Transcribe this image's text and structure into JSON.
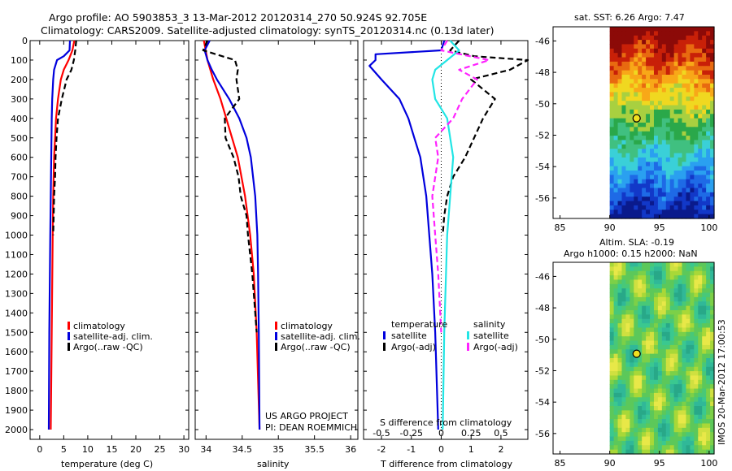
{
  "header": {
    "title_line1": "Argo profile: AO 5903853_3 13-Mar-2012 20120314_270 50.924S 92.705E",
    "title_line2": "Climatology: CARS2009. Satellite-adjusted climatology: synTS_20120314.nc (0.13d later)"
  },
  "colors": {
    "climatology": "#ff0000",
    "satellite": "#0000dd",
    "argo": "#000000",
    "satellite_salinity": "#22e5e5",
    "argo_adj_salinity": "#ff22ff"
  },
  "chart_data": [
    {
      "type": "line",
      "name": "temperature-profile",
      "xlabel": "temperature (deg C)",
      "ylabel": "",
      "xlim": [
        -2,
        31
      ],
      "ylim": [
        2050,
        0
      ],
      "xticks": [
        "0",
        "5",
        "10",
        "15",
        "20",
        "25",
        "30"
      ],
      "xtick_values": [
        0,
        5,
        10,
        15,
        20,
        25,
        30
      ],
      "yticks": [
        "0",
        "100",
        "200",
        "300",
        "400",
        "500",
        "600",
        "700",
        "800",
        "900",
        "1000",
        "1100",
        "1200",
        "1300",
        "1400",
        "1500",
        "1600",
        "1700",
        "1800",
        "1900",
        "2000"
      ],
      "ytick_values": [
        0,
        100,
        200,
        300,
        400,
        500,
        600,
        700,
        800,
        900,
        1000,
        1100,
        1200,
        1300,
        1400,
        1500,
        1600,
        1700,
        1800,
        1900,
        2000
      ],
      "legend": [
        "climatology",
        "satellite-adj. clim.",
        "Argo(..raw -QC)"
      ],
      "series": [
        {
          "name": "climatology",
          "style": "solid",
          "depth": [
            0,
            50,
            100,
            150,
            200,
            300,
            400,
            600,
            800,
            1000,
            1500,
            2000
          ],
          "values": [
            7.2,
            6.8,
            6.0,
            5.0,
            4.4,
            3.8,
            3.4,
            3.0,
            2.8,
            2.7,
            2.5,
            2.3
          ]
        },
        {
          "name": "satellite-adj. clim.",
          "style": "solid",
          "depth": [
            0,
            50,
            80,
            100,
            150,
            200,
            300,
            400,
            600,
            800,
            1000,
            1500,
            2000
          ],
          "values": [
            6.3,
            6.2,
            5.0,
            3.6,
            3.0,
            2.8,
            2.6,
            2.5,
            2.4,
            2.3,
            2.2,
            2.0,
            1.9
          ]
        },
        {
          "name": "Argo(..raw -QC)",
          "style": "dashed",
          "depth": [
            0,
            50,
            100,
            150,
            200,
            300,
            400,
            500,
            600,
            700,
            800,
            900,
            1000
          ],
          "values": [
            7.6,
            7.4,
            7.1,
            6.6,
            5.6,
            4.6,
            3.8,
            3.5,
            3.3,
            3.2,
            3.0,
            2.9,
            2.8
          ]
        }
      ]
    },
    {
      "type": "line",
      "name": "salinity-profile",
      "xlabel": "salinity",
      "xlim": [
        33.85,
        36.1
      ],
      "ylim": [
        2050,
        0
      ],
      "xticks": [
        "34",
        "34.5",
        "35",
        "35.5",
        "36"
      ],
      "xtick_values": [
        34,
        34.5,
        35,
        35.5,
        36
      ],
      "legend": [
        "climatology",
        "satellite-adj. clim.",
        "Argo(..raw -QC)"
      ],
      "annotations": [
        "US ARGO PROJECT",
        "PI: DEAN ROEMMICH"
      ],
      "series": [
        {
          "name": "climatology",
          "style": "solid",
          "depth": [
            0,
            100,
            200,
            300,
            400,
            500,
            600,
            800,
            1000,
            1200,
            1500,
            2000
          ],
          "values": [
            33.97,
            34.02,
            34.1,
            34.2,
            34.28,
            34.36,
            34.44,
            34.54,
            34.61,
            34.66,
            34.7,
            34.74
          ]
        },
        {
          "name": "satellite-adj. clim.",
          "style": "solid",
          "depth": [
            0,
            50,
            100,
            150,
            200,
            300,
            400,
            500,
            600,
            800,
            1000,
            1200,
            1500,
            2000
          ],
          "values": [
            34.05,
            33.98,
            34.02,
            34.08,
            34.15,
            34.32,
            34.46,
            34.56,
            34.62,
            34.68,
            34.71,
            34.72,
            34.73,
            34.74
          ]
        },
        {
          "name": "Argo(..raw -QC)",
          "style": "dashed",
          "depth": [
            0,
            50,
            100,
            150,
            200,
            300,
            400,
            500,
            600,
            700,
            800,
            900,
            1000,
            1200,
            1500
          ],
          "values": [
            34.02,
            33.96,
            34.4,
            34.44,
            34.42,
            34.46,
            34.26,
            34.27,
            34.38,
            34.45,
            34.48,
            34.56,
            34.58,
            34.64,
            34.7
          ]
        }
      ]
    },
    {
      "type": "line",
      "name": "difference-profile",
      "xlabel": "T difference from climatology",
      "top_axis_label": "S difference from climatology",
      "xlim": [
        -2.6,
        2.9
      ],
      "ylim": [
        2050,
        0
      ],
      "xticks": [
        "-2",
        "-1",
        "0",
        "1",
        "2"
      ],
      "xtick_values": [
        -2,
        -1,
        0,
        1,
        2
      ],
      "top_xticks": [
        "-0.5",
        "-0.25",
        "0",
        "0.25",
        "0.5"
      ],
      "top_xtick_values": [
        -2,
        -1,
        0,
        1,
        2
      ],
      "legend_headers": [
        "temperature",
        "salinity"
      ],
      "legend": [
        "satellite",
        "Argo(-adj)",
        "satellite",
        "Argo(-adj)"
      ],
      "series": [
        {
          "name": "temperature satellite",
          "style": "solid",
          "depth": [
            0,
            50,
            70,
            100,
            130,
            200,
            300,
            400,
            500,
            600,
            800,
            1000,
            1200,
            1500,
            2000
          ],
          "values": [
            0.1,
            0.0,
            -2.2,
            -2.2,
            -2.4,
            -2.0,
            -1.4,
            -1.1,
            -0.9,
            -0.7,
            -0.5,
            -0.4,
            -0.3,
            -0.2,
            -0.1
          ]
        },
        {
          "name": "temperature Argo(-adj)",
          "style": "dashed",
          "depth": [
            0,
            50,
            80,
            100,
            150,
            200,
            300,
            400,
            500,
            600,
            700,
            800,
            900,
            1000
          ],
          "values": [
            0.6,
            0.3,
            1.1,
            2.9,
            2.3,
            1.0,
            1.8,
            1.4,
            1.1,
            0.8,
            0.4,
            0.2,
            0.1,
            0.05
          ]
        },
        {
          "name": "salinity satellite",
          "style": "solid",
          "depth": [
            0,
            50,
            100,
            150,
            200,
            300,
            400,
            600,
            800,
            1000,
            1500,
            2000
          ],
          "values": [
            0.3,
            0.6,
            0.2,
            -0.2,
            -0.3,
            -0.2,
            0.2,
            0.4,
            0.3,
            0.2,
            0.1,
            0.05
          ]
        },
        {
          "name": "salinity Argo(-adj)",
          "style": "dashed",
          "depth": [
            0,
            50,
            100,
            150,
            200,
            300,
            400,
            500,
            600,
            800,
            1000,
            1200,
            1500
          ],
          "values": [
            0.2,
            0.0,
            1.6,
            0.6,
            1.2,
            0.7,
            0.4,
            -0.2,
            -0.1,
            -0.3,
            -0.2,
            -0.1,
            0.0
          ]
        }
      ]
    },
    {
      "type": "heatmap",
      "name": "sst-map",
      "title": "sat. SST: 6.26 Argo: 7.47",
      "xticks": [
        "85",
        "90",
        "95",
        "100"
      ],
      "xtick_values": [
        85,
        90,
        95,
        100
      ],
      "yticks": [
        "-46",
        "-48",
        "-50",
        "-52",
        "-54",
        "-56"
      ],
      "ytick_values": [
        -46,
        -48,
        -50,
        -52,
        -54,
        -56
      ],
      "xlim": [
        84.3,
        100.5
      ],
      "ylim": [
        -57.3,
        -45.1
      ],
      "marker": {
        "lon": 92.705,
        "lat": -50.924
      }
    },
    {
      "type": "heatmap",
      "name": "sla-map",
      "title_line1": "Altim. SLA: -0.19",
      "title_line2": "Argo h1000: 0.15 h2000: NaN",
      "xticks": [
        "85",
        "90",
        "95",
        "100"
      ],
      "xtick_values": [
        85,
        90,
        95,
        100
      ],
      "yticks": [
        "-46",
        "-48",
        "-50",
        "-52",
        "-54",
        "-56"
      ],
      "ytick_values": [
        -46,
        -48,
        -50,
        -52,
        -54,
        -56
      ],
      "xlim": [
        84.3,
        100.5
      ],
      "ylim": [
        -57.3,
        -45.1
      ],
      "marker": {
        "lon": 92.705,
        "lat": -50.924
      }
    }
  ],
  "footer": {
    "stamp": "IMOS 20-Mar-2012 17:00:53"
  }
}
